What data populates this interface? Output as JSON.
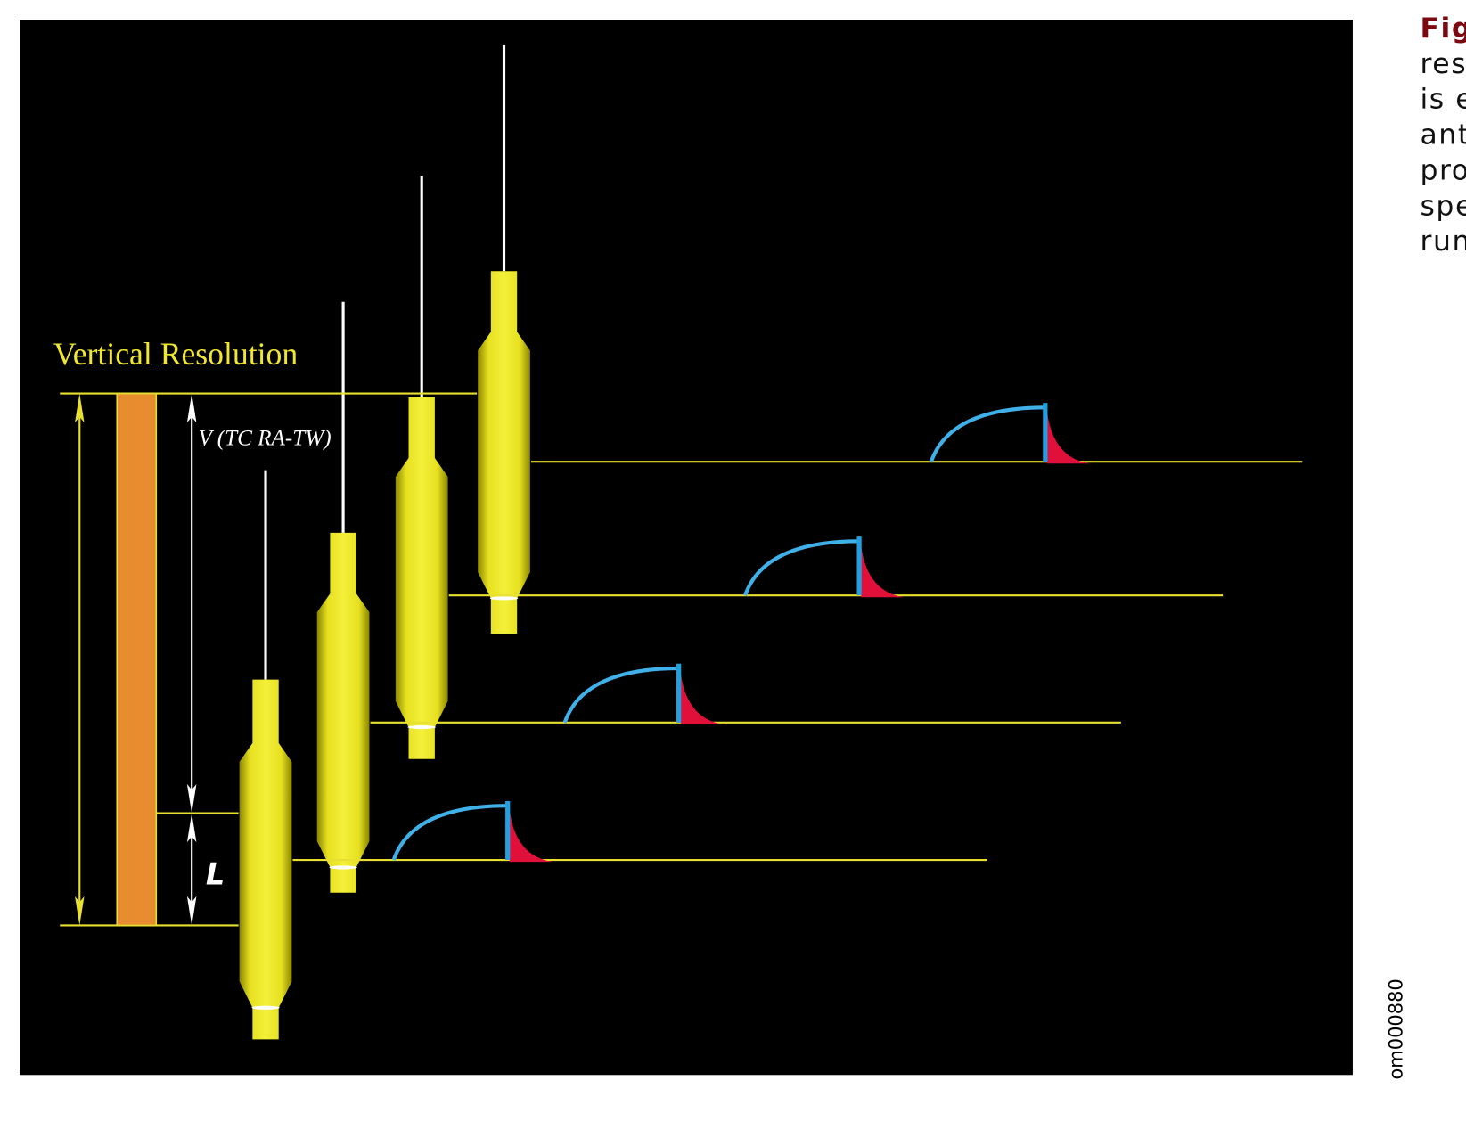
{
  "figure": {
    "label": "Vertical Resolution",
    "v_label": "V (TC RA-TW)",
    "l_label": "L",
    "code": "om000880"
  },
  "caption": {
    "lines": [
      "Fig",
      "res",
      "is e",
      "ant",
      "pro",
      "spe",
      "run"
    ]
  }
}
